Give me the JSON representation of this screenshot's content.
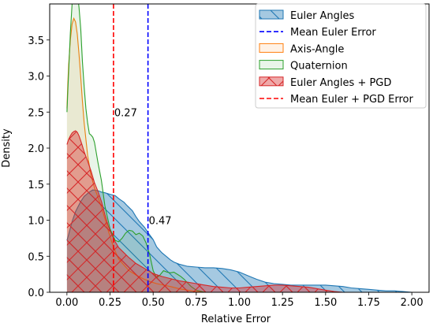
{
  "chart_data": {
    "type": "area",
    "title": "",
    "xlabel": "Relative Error",
    "ylabel": "Density",
    "xlim": [
      -0.1,
      2.1
    ],
    "ylim": [
      0,
      4.0
    ],
    "xticks": [
      0.0,
      0.25,
      0.5,
      0.75,
      1.0,
      1.25,
      1.5,
      1.75,
      2.0
    ],
    "xtick_labels": [
      "0.00",
      "0.25",
      "0.50",
      "0.75",
      "1.00",
      "1.25",
      "1.50",
      "1.75",
      "2.00"
    ],
    "yticks": [
      0.0,
      0.5,
      1.0,
      1.5,
      2.0,
      2.5,
      3.0,
      3.5
    ],
    "ytick_labels": [
      "0.0",
      "0.5",
      "1.0",
      "1.5",
      "2.0",
      "2.5",
      "3.0",
      "3.5"
    ],
    "grid": false,
    "legend_position": "top-right",
    "series": [
      {
        "name": "Euler Angles",
        "kind": "kde",
        "color": "#1f77b4",
        "fill": "#1f77b4",
        "fill_alpha": 0.4,
        "hatch": "\\\\",
        "x": [
          0.0,
          0.01,
          0.03,
          0.05,
          0.08,
          0.1,
          0.13,
          0.15,
          0.18,
          0.2,
          0.22,
          0.25,
          0.28,
          0.3,
          0.33,
          0.35,
          0.38,
          0.4,
          0.42,
          0.45,
          0.47,
          0.5,
          0.52,
          0.55,
          0.58,
          0.6,
          0.62,
          0.65,
          0.7,
          0.75,
          0.8,
          0.85,
          0.9,
          0.95,
          1.0,
          1.05,
          1.1,
          1.15,
          1.2,
          1.25,
          1.3,
          1.35,
          1.4,
          1.45,
          1.5,
          1.55,
          1.6,
          1.65,
          1.7,
          1.75,
          1.8,
          1.85,
          1.9,
          1.95,
          2.0
        ],
        "y": [
          0.72,
          0.8,
          0.98,
          1.12,
          1.26,
          1.33,
          1.39,
          1.42,
          1.41,
          1.39,
          1.38,
          1.36,
          1.34,
          1.3,
          1.25,
          1.2,
          1.13,
          1.05,
          0.98,
          0.9,
          0.83,
          0.73,
          0.63,
          0.55,
          0.49,
          0.45,
          0.42,
          0.39,
          0.36,
          0.35,
          0.34,
          0.34,
          0.33,
          0.31,
          0.28,
          0.23,
          0.18,
          0.14,
          0.12,
          0.11,
          0.1,
          0.1,
          0.1,
          0.1,
          0.1,
          0.09,
          0.08,
          0.06,
          0.05,
          0.04,
          0.03,
          0.02,
          0.02,
          0.01,
          0.0
        ]
      },
      {
        "name": "Axis-Angle",
        "kind": "kde",
        "color": "#ff7f0e",
        "fill": "#ff7f0e",
        "fill_alpha": 0.1,
        "x": [
          0.0,
          0.005,
          0.01,
          0.02,
          0.03,
          0.04,
          0.05,
          0.06,
          0.07,
          0.08,
          0.09,
          0.1,
          0.12,
          0.14,
          0.16,
          0.18,
          0.2,
          0.22,
          0.24,
          0.26,
          0.28,
          0.3,
          0.33,
          0.36,
          0.4,
          0.44,
          0.48,
          0.52,
          0.56,
          0.6,
          0.65,
          0.7,
          0.75,
          0.8
        ],
        "y": [
          2.55,
          2.9,
          3.15,
          3.5,
          3.72,
          3.8,
          3.75,
          3.58,
          3.3,
          2.98,
          2.65,
          2.35,
          1.9,
          1.62,
          1.45,
          1.32,
          1.18,
          1.02,
          0.85,
          0.7,
          0.57,
          0.46,
          0.38,
          0.3,
          0.24,
          0.19,
          0.15,
          0.12,
          0.1,
          0.08,
          0.05,
          0.03,
          0.01,
          0.0
        ]
      },
      {
        "name": "Quaternion",
        "kind": "kde",
        "color": "#2ca02c",
        "fill": "#2ca02c",
        "fill_alpha": 0.1,
        "x": [
          0.0,
          0.005,
          0.01,
          0.02,
          0.03,
          0.04,
          0.05,
          0.06,
          0.07,
          0.08,
          0.09,
          0.1,
          0.11,
          0.12,
          0.13,
          0.14,
          0.15,
          0.16,
          0.18,
          0.2,
          0.22,
          0.25,
          0.28,
          0.3,
          0.32,
          0.34,
          0.36,
          0.38,
          0.4,
          0.42,
          0.44,
          0.46,
          0.48,
          0.5,
          0.52,
          0.54,
          0.56,
          0.58,
          0.6,
          0.62,
          0.64,
          0.66,
          0.68,
          0.7,
          0.72,
          0.75,
          0.8
        ],
        "y": [
          2.5,
          2.8,
          3.05,
          3.6,
          4.0,
          4.35,
          4.3,
          4.15,
          3.95,
          3.65,
          3.2,
          2.85,
          2.55,
          2.35,
          2.2,
          2.18,
          2.15,
          2.08,
          1.8,
          1.55,
          1.2,
          0.88,
          0.72,
          0.7,
          0.75,
          0.82,
          0.86,
          0.85,
          0.8,
          0.82,
          0.78,
          0.68,
          0.52,
          0.3,
          0.2,
          0.24,
          0.3,
          0.28,
          0.27,
          0.28,
          0.25,
          0.22,
          0.18,
          0.13,
          0.08,
          0.03,
          0.0
        ]
      },
      {
        "name": "Euler Angles + PGD",
        "kind": "kde",
        "color": "#d62728",
        "fill": "#d62728",
        "fill_alpha": 0.4,
        "hatch": "x",
        "x": [
          0.0,
          0.01,
          0.02,
          0.03,
          0.04,
          0.05,
          0.06,
          0.07,
          0.08,
          0.09,
          0.1,
          0.12,
          0.14,
          0.16,
          0.18,
          0.2,
          0.22,
          0.24,
          0.26,
          0.28,
          0.3,
          0.33,
          0.36,
          0.4,
          0.45,
          0.5,
          0.55,
          0.6,
          0.65,
          0.7,
          0.75,
          0.8,
          0.85,
          0.9,
          0.95,
          1.0,
          1.05,
          1.1,
          1.15,
          1.2,
          1.25,
          1.3,
          1.35,
          1.4,
          1.45,
          1.5,
          1.55,
          1.6
        ],
        "y": [
          2.05,
          2.12,
          2.17,
          2.21,
          2.23,
          2.24,
          2.22,
          2.17,
          2.1,
          2.03,
          1.95,
          1.82,
          1.68,
          1.52,
          1.4,
          1.26,
          1.08,
          0.92,
          0.8,
          0.7,
          0.62,
          0.55,
          0.48,
          0.4,
          0.33,
          0.26,
          0.22,
          0.19,
          0.16,
          0.14,
          0.12,
          0.1,
          0.08,
          0.07,
          0.06,
          0.06,
          0.07,
          0.08,
          0.09,
          0.1,
          0.1,
          0.09,
          0.08,
          0.07,
          0.05,
          0.03,
          0.01,
          0.0
        ]
      }
    ],
    "vlines": [
      {
        "name": "Mean Euler Error",
        "x": 0.47,
        "color": "#0000ff",
        "style": "dashed",
        "label": "0.47",
        "label_y": 1.0
      },
      {
        "name": "Mean Euler + PGD Error",
        "x": 0.27,
        "color": "#ff0000",
        "style": "dashed",
        "label": "0.27",
        "label_y": 2.5
      }
    ],
    "legend": [
      {
        "label": "Euler Angles",
        "type": "patch",
        "color": "#1f77b4",
        "fill_alpha": 0.4,
        "hatch": "\\\\"
      },
      {
        "label": "Mean Euler Error",
        "type": "line",
        "color": "#0000ff",
        "style": "dashed"
      },
      {
        "label": "Axis-Angle",
        "type": "patch",
        "color": "#ff7f0e",
        "fill_alpha": 0.1
      },
      {
        "label": "Quaternion",
        "type": "patch",
        "color": "#2ca02c",
        "fill_alpha": 0.1
      },
      {
        "label": "Euler Angles + PGD",
        "type": "patch",
        "color": "#d62728",
        "fill_alpha": 0.4,
        "hatch": "x"
      },
      {
        "label": "Mean Euler + PGD Error",
        "type": "line",
        "color": "#ff0000",
        "style": "dashed"
      }
    ]
  }
}
